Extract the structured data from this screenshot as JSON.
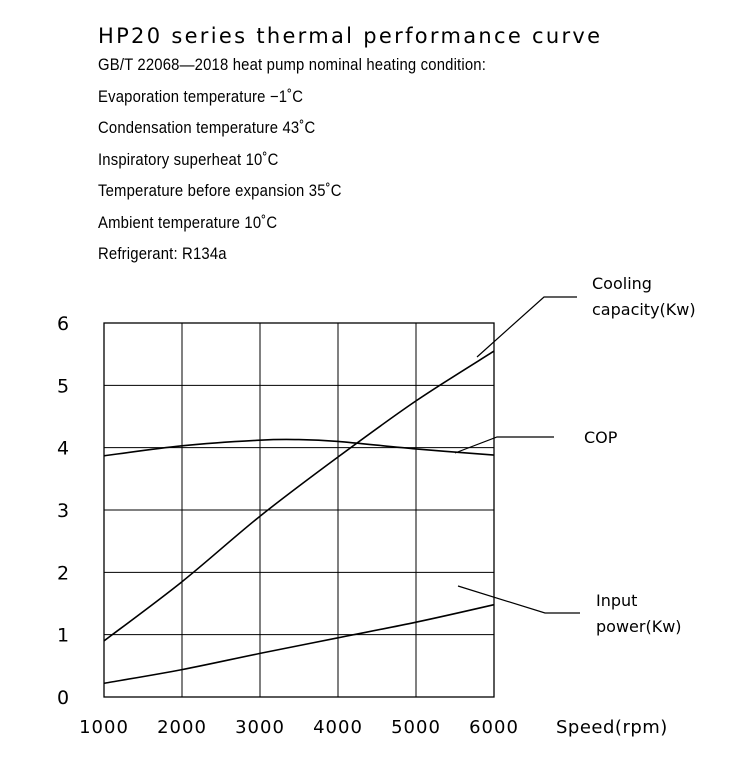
{
  "header": {
    "title": "HP20  series  thermal performance  curve",
    "lines": [
      "GB/T 22068—2018 heat pump nominal heating condition:",
      "Evaporation temperature −1˚C",
      "Condensation   temperature 43˚C",
      "Inspiratory superheat 10˚C",
      "Temperature before expansion 35˚C",
      "Ambient   temperature 10˚C",
      "Refrigerant: R134a"
    ]
  },
  "chart_data": {
    "type": "line",
    "xlabel": "Speed(rpm)",
    "x": [
      1000,
      2000,
      3000,
      4000,
      5000,
      6000
    ],
    "xlim": [
      1000,
      6000
    ],
    "ylim": [
      0,
      6
    ],
    "xticks": [
      "1000",
      "2000",
      "3000",
      "4000",
      "5000",
      "6000"
    ],
    "yticks": [
      "0",
      "1",
      "2",
      "3",
      "4",
      "5",
      "6"
    ],
    "grid": true,
    "series": [
      {
        "name": "Cooling capacity(Kw)",
        "label_lines": [
          "Cooling",
          "capacity(Kw)"
        ],
        "x": [
          1000,
          2000,
          3000,
          4000,
          5000,
          6000
        ],
        "values": [
          0.9,
          1.85,
          2.9,
          3.85,
          4.75,
          5.55
        ]
      },
      {
        "name": "COP",
        "label_lines": [
          "COP"
        ],
        "x": [
          1000,
          2000,
          3000,
          3500,
          4000,
          5000,
          6000
        ],
        "values": [
          3.87,
          4.03,
          4.12,
          4.13,
          4.1,
          3.98,
          3.88
        ]
      },
      {
        "name": "Input power(Kw)",
        "label_lines": [
          "Input",
          "power(Kw)"
        ],
        "x": [
          1000,
          2000,
          3000,
          4000,
          5000,
          6000
        ],
        "values": [
          0.22,
          0.44,
          0.7,
          0.95,
          1.2,
          1.48
        ]
      }
    ]
  }
}
